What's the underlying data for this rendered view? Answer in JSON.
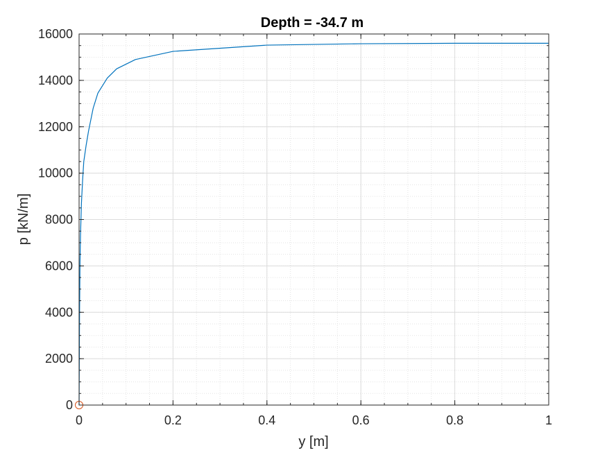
{
  "chart_data": {
    "type": "line",
    "title": "Depth = -34.7 m",
    "xlabel": "y [m]",
    "ylabel": "p [kN/m]",
    "xlim": [
      0,
      1
    ],
    "ylim": [
      0,
      16000
    ],
    "grid": true,
    "minor_grid": true,
    "x_ticks": [
      0,
      0.2,
      0.4,
      0.6,
      0.8,
      1
    ],
    "x_tick_labels": [
      "0",
      "0.2",
      "0.4",
      "0.6",
      "0.8",
      "1"
    ],
    "y_ticks": [
      0,
      2000,
      4000,
      6000,
      8000,
      10000,
      12000,
      14000,
      16000
    ],
    "y_tick_labels": [
      "0",
      "2000",
      "4000",
      "6000",
      "8000",
      "10000",
      "12000",
      "14000",
      "16000"
    ],
    "series": [
      {
        "type": "line",
        "color": "#0072BD",
        "x": [
          0,
          0.001,
          0.002,
          0.003,
          0.005,
          0.0075,
          0.01,
          0.015,
          0.02,
          0.03,
          0.04,
          0.06,
          0.08,
          0.12,
          0.2,
          0.4,
          0.6,
          0.8,
          1.0
        ],
        "y": [
          0,
          4000,
          6200,
          7300,
          8700,
          9700,
          10500,
          11200,
          11800,
          12800,
          13450,
          14100,
          14500,
          14900,
          15250,
          15520,
          15580,
          15600,
          15600
        ]
      },
      {
        "type": "marker",
        "marker": "circle",
        "color": "#D95319",
        "x": [
          0
        ],
        "y": [
          0
        ]
      }
    ]
  }
}
